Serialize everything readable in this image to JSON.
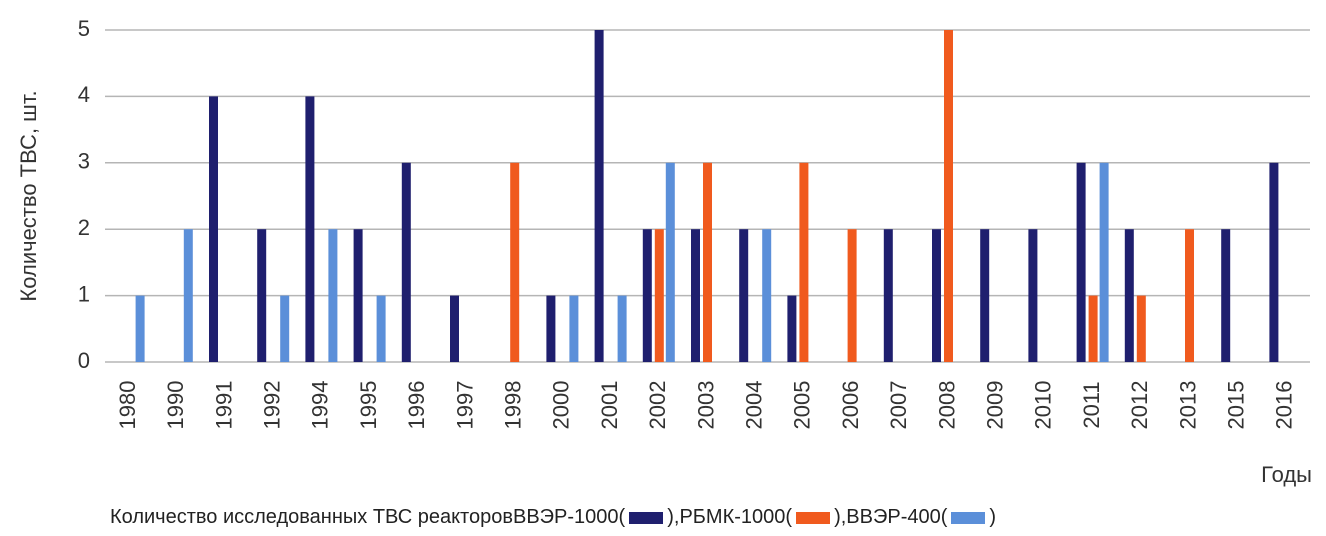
{
  "chart_data": {
    "type": "bar",
    "ylabel": "Количество ТВС, шт.",
    "xlabel": "Годы",
    "legend_prefix": "Количество исследованных ТВС реакторов",
    "legend_open": "(",
    "legend_close": ")",
    "legend_separator": ",",
    "categories": [
      "1980",
      "1990",
      "1991",
      "1992",
      "1994",
      "1995",
      "1996",
      "1997",
      "1998",
      "2000",
      "2001",
      "2002",
      "2003",
      "2004",
      "2005",
      "2006",
      "2007",
      "2008",
      "2009",
      "2010",
      "2011",
      "2012",
      "2013",
      "2015",
      "2016"
    ],
    "series": [
      {
        "name": "ВВЭР-1000",
        "color": "#1f1f6e",
        "values": [
          0,
          0,
          4,
          2,
          4,
          2,
          3,
          1,
          0,
          1,
          5,
          2,
          2,
          2,
          1,
          0,
          2,
          2,
          2,
          2,
          3,
          2,
          0,
          2,
          3
        ]
      },
      {
        "name": "РБМК-1000",
        "color": "#f05a1e",
        "values": [
          0,
          0,
          0,
          0,
          0,
          0,
          0,
          0,
          3,
          0,
          0,
          2,
          3,
          0,
          3,
          2,
          0,
          5,
          0,
          0,
          1,
          1,
          2,
          0,
          0
        ]
      },
      {
        "name": "ВВЭР-400",
        "color": "#5b8fd9",
        "values": [
          1,
          2,
          0,
          1,
          2,
          1,
          0,
          0,
          0,
          1,
          1,
          3,
          0,
          2,
          0,
          0,
          0,
          0,
          0,
          0,
          3,
          0,
          0,
          0,
          0
        ]
      }
    ],
    "ylim": [
      0,
      5
    ],
    "yticks": [
      0,
      1,
      2,
      3,
      4,
      5
    ],
    "grid": true
  }
}
